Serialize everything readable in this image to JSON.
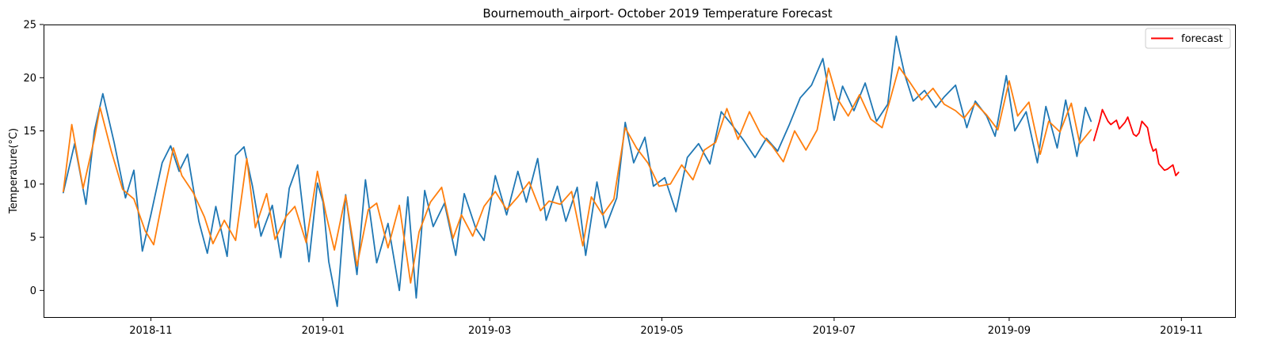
{
  "chart_data": {
    "type": "line",
    "title": "Bournemouth_airport- October 2019 Temperature Forecast",
    "xlabel": "",
    "ylabel": "Temperature(°C)",
    "x_axis_type": "date",
    "xlim": [
      "2018-09-24",
      "2019-11-20"
    ],
    "ylim": [
      -2.5,
      25
    ],
    "x_ticks": [
      "2018-11-01",
      "2019-01-01",
      "2019-03-01",
      "2019-05-01",
      "2019-07-01",
      "2019-09-01",
      "2019-11-01"
    ],
    "x_tick_labels": [
      "2018-11",
      "2019-01",
      "2019-03",
      "2019-05",
      "2019-07",
      "2019-09",
      "2019-11"
    ],
    "y_ticks": [
      0,
      5,
      10,
      15,
      20,
      25
    ],
    "y_tick_labels": [
      "0",
      "5",
      "10",
      "15",
      "20",
      "25"
    ],
    "grid": false,
    "legend": {
      "position": "top-right",
      "entries": [
        "forecast"
      ]
    },
    "series": [
      {
        "color": "#1f77b4",
        "x": [
          "2018-10-01",
          "2018-10-05",
          "2018-10-09",
          "2018-10-12",
          "2018-10-15",
          "2018-10-19",
          "2018-10-23",
          "2018-10-26",
          "2018-10-29",
          "2018-11-01",
          "2018-11-05",
          "2018-11-08",
          "2018-11-11",
          "2018-11-14",
          "2018-11-18",
          "2018-11-21",
          "2018-11-24",
          "2018-11-28",
          "2018-12-01",
          "2018-12-04",
          "2018-12-07",
          "2018-12-10",
          "2018-12-14",
          "2018-12-17",
          "2018-12-20",
          "2018-12-23",
          "2018-12-27",
          "2018-12-30",
          "2019-01-01",
          "2019-01-03",
          "2019-01-06",
          "2019-01-09",
          "2019-01-13",
          "2019-01-16",
          "2019-01-20",
          "2019-01-24",
          "2019-01-28",
          "2019-01-31",
          "2019-02-03",
          "2019-02-06",
          "2019-02-09",
          "2019-02-13",
          "2019-02-17",
          "2019-02-20",
          "2019-02-24",
          "2019-02-27",
          "2019-03-03",
          "2019-03-07",
          "2019-03-11",
          "2019-03-14",
          "2019-03-18",
          "2019-03-21",
          "2019-03-25",
          "2019-03-28",
          "2019-04-01",
          "2019-04-04",
          "2019-04-08",
          "2019-04-11",
          "2019-04-15",
          "2019-04-18",
          "2019-04-21",
          "2019-04-25",
          "2019-04-28",
          "2019-05-02",
          "2019-05-06",
          "2019-05-10",
          "2019-05-14",
          "2019-05-18",
          "2019-05-22",
          "2019-05-26",
          "2019-05-30",
          "2019-06-03",
          "2019-06-07",
          "2019-06-11",
          "2019-06-15",
          "2019-06-19",
          "2019-06-23",
          "2019-06-27",
          "2019-07-01",
          "2019-07-04",
          "2019-07-08",
          "2019-07-12",
          "2019-07-16",
          "2019-07-20",
          "2019-07-23",
          "2019-07-26",
          "2019-07-29",
          "2019-08-02",
          "2019-08-06",
          "2019-08-09",
          "2019-08-13",
          "2019-08-17",
          "2019-08-20",
          "2019-08-24",
          "2019-08-27",
          "2019-08-31",
          "2019-09-03",
          "2019-09-07",
          "2019-09-11",
          "2019-09-14",
          "2019-09-18",
          "2019-09-21",
          "2019-09-25",
          "2019-09-28",
          "2019-09-30"
        ],
        "values": [
          9.2,
          13.8,
          8.1,
          15.0,
          18.5,
          13.9,
          8.7,
          11.3,
          3.7,
          7.1,
          12.0,
          13.6,
          11.2,
          12.8,
          6.5,
          3.5,
          7.9,
          3.2,
          12.7,
          13.5,
          9.8,
          5.1,
          8.0,
          3.1,
          9.6,
          11.8,
          2.7,
          10.1,
          8.3,
          2.7,
          -1.5,
          9.0,
          1.5,
          10.4,
          2.6,
          6.3,
          0.0,
          8.8,
          -0.7,
          9.4,
          6.0,
          8.2,
          3.3,
          9.1,
          5.9,
          4.7,
          10.8,
          7.1,
          11.2,
          8.3,
          12.4,
          6.6,
          9.8,
          6.5,
          9.7,
          3.3,
          10.2,
          5.9,
          8.7,
          15.8,
          12.0,
          14.4,
          9.8,
          10.6,
          7.4,
          12.5,
          13.8,
          11.9,
          16.8,
          15.5,
          14.1,
          12.5,
          14.3,
          13.1,
          15.5,
          18.1,
          19.3,
          21.8,
          16.0,
          19.2,
          16.9,
          19.5,
          15.9,
          17.5,
          23.9,
          20.3,
          17.8,
          18.8,
          17.2,
          18.2,
          19.3,
          15.3,
          17.8,
          16.4,
          14.5,
          20.2,
          15.0,
          16.8,
          12.0,
          17.3,
          13.4,
          17.9,
          12.6,
          17.2,
          15.9
        ]
      },
      {
        "color": "#ff7f0e",
        "x": [
          "2018-10-01",
          "2018-10-04",
          "2018-10-08",
          "2018-10-12",
          "2018-10-14",
          "2018-10-18",
          "2018-10-22",
          "2018-10-26",
          "2018-10-30",
          "2018-11-02",
          "2018-11-06",
          "2018-11-09",
          "2018-11-12",
          "2018-11-16",
          "2018-11-20",
          "2018-11-23",
          "2018-11-27",
          "2018-12-01",
          "2018-12-05",
          "2018-12-08",
          "2018-12-12",
          "2018-12-15",
          "2018-12-19",
          "2018-12-22",
          "2018-12-26",
          "2018-12-30",
          "2019-01-02",
          "2019-01-05",
          "2019-01-09",
          "2019-01-13",
          "2019-01-17",
          "2019-01-20",
          "2019-01-24",
          "2019-01-28",
          "2019-02-01",
          "2019-02-04",
          "2019-02-08",
          "2019-02-12",
          "2019-02-16",
          "2019-02-19",
          "2019-02-23",
          "2019-02-27",
          "2019-03-03",
          "2019-03-07",
          "2019-03-11",
          "2019-03-15",
          "2019-03-19",
          "2019-03-22",
          "2019-03-26",
          "2019-03-30",
          "2019-04-03",
          "2019-04-06",
          "2019-04-10",
          "2019-04-14",
          "2019-04-18",
          "2019-04-22",
          "2019-04-26",
          "2019-04-30",
          "2019-05-04",
          "2019-05-08",
          "2019-05-12",
          "2019-05-16",
          "2019-05-20",
          "2019-05-24",
          "2019-05-28",
          "2019-06-01",
          "2019-06-05",
          "2019-06-09",
          "2019-06-13",
          "2019-06-17",
          "2019-06-21",
          "2019-06-25",
          "2019-06-29",
          "2019-07-02",
          "2019-07-06",
          "2019-07-10",
          "2019-07-14",
          "2019-07-18",
          "2019-07-21",
          "2019-07-24",
          "2019-07-28",
          "2019-08-01",
          "2019-08-05",
          "2019-08-09",
          "2019-08-13",
          "2019-08-16",
          "2019-08-20",
          "2019-08-24",
          "2019-08-28",
          "2019-09-01",
          "2019-09-04",
          "2019-09-08",
          "2019-09-12",
          "2019-09-15",
          "2019-09-19",
          "2019-09-23",
          "2019-09-26",
          "2019-09-30"
        ],
        "values": [
          9.3,
          15.6,
          9.6,
          14.3,
          17.2,
          13.1,
          9.5,
          8.6,
          5.6,
          4.3,
          9.7,
          13.4,
          10.8,
          9.2,
          6.9,
          4.4,
          6.6,
          4.7,
          12.4,
          5.9,
          9.1,
          4.8,
          7.0,
          7.9,
          4.5,
          11.2,
          7.2,
          3.8,
          8.9,
          2.3,
          7.6,
          8.2,
          4.0,
          8.0,
          0.7,
          5.5,
          8.3,
          9.7,
          4.9,
          7.1,
          5.1,
          7.9,
          9.3,
          7.6,
          8.8,
          10.2,
          7.5,
          8.4,
          8.1,
          9.3,
          4.2,
          8.8,
          7.1,
          8.6,
          15.3,
          13.4,
          12.0,
          9.8,
          10.0,
          11.8,
          10.4,
          13.2,
          13.9,
          17.1,
          14.2,
          16.8,
          14.7,
          13.6,
          12.1,
          15.0,
          13.2,
          15.1,
          20.9,
          18.1,
          16.4,
          18.4,
          16.1,
          15.3,
          18.1,
          21.0,
          19.5,
          17.9,
          19.0,
          17.5,
          16.9,
          16.2,
          17.6,
          16.5,
          15.1,
          19.7,
          16.4,
          17.7,
          12.8,
          15.9,
          14.9,
          17.6,
          13.8,
          15.1
        ]
      },
      {
        "name": "forecast",
        "color": "#ff0000",
        "x": [
          "2019-10-01",
          "2019-10-03",
          "2019-10-04",
          "2019-10-06",
          "2019-10-07",
          "2019-10-08",
          "2019-10-09",
          "2019-10-10",
          "2019-10-12",
          "2019-10-13",
          "2019-10-15",
          "2019-10-16",
          "2019-10-17",
          "2019-10-18",
          "2019-10-20",
          "2019-10-21",
          "2019-10-22",
          "2019-10-23",
          "2019-10-24",
          "2019-10-26",
          "2019-10-27",
          "2019-10-28",
          "2019-10-29",
          "2019-10-30",
          "2019-10-31"
        ],
        "values": [
          14.1,
          15.9,
          17.0,
          15.9,
          15.6,
          15.8,
          16.0,
          15.2,
          15.8,
          16.3,
          14.7,
          14.5,
          14.8,
          15.9,
          15.3,
          13.9,
          13.1,
          13.3,
          11.9,
          11.3,
          11.4,
          11.6,
          11.8,
          10.8,
          11.1
        ]
      }
    ]
  }
}
